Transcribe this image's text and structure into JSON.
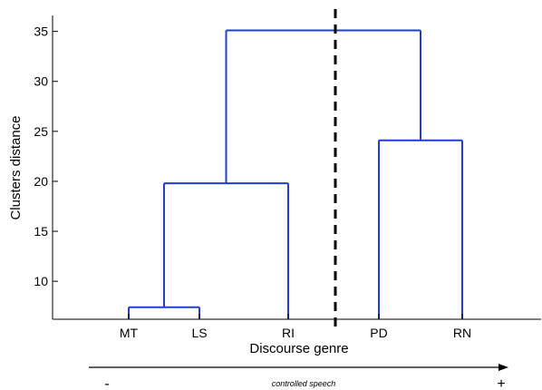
{
  "chart_data": {
    "type": "dendrogram",
    "xlabel": "Discourse genre",
    "ylabel": "Clusters distance",
    "yticks": [
      10,
      15,
      20,
      25,
      30,
      35
    ],
    "ylim": [
      6.2,
      36.6
    ],
    "leaves": [
      "MT",
      "LS",
      "RI",
      "PD",
      "RN"
    ],
    "merges": [
      {
        "members": [
          "MT",
          "LS"
        ],
        "height": 7.4
      },
      {
        "members": [
          "MT",
          "LS",
          "RI"
        ],
        "height": 19.8
      },
      {
        "members": [
          "PD",
          "RN"
        ],
        "height": 24.1
      },
      {
        "members": [
          "MT",
          "LS",
          "RI",
          "PD",
          "RN"
        ],
        "height": 35.1
      }
    ],
    "cut_line": {
      "between": [
        "RI",
        "PD"
      ],
      "style": "dashed"
    },
    "line_color": "#1f3fd1",
    "bottom_arrow": {
      "caption": "controlled speech",
      "left_mark": "-",
      "right_mark": "+"
    }
  }
}
